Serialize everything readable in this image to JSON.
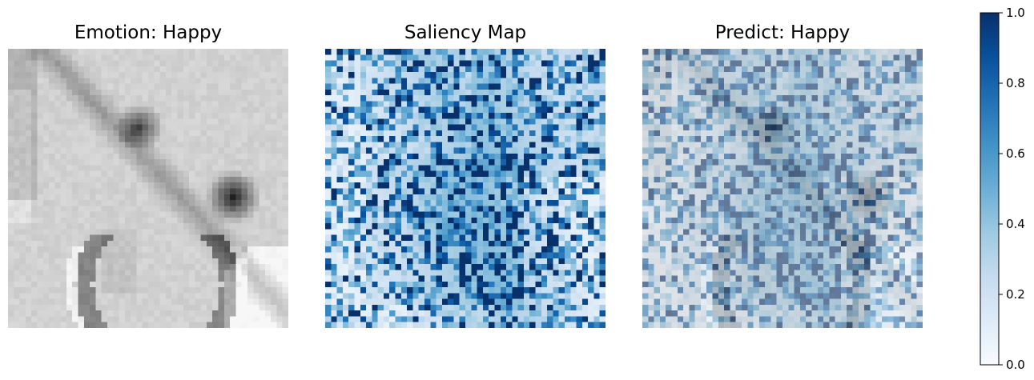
{
  "panels": [
    {
      "title": "Emotion: Happy",
      "kind": "grayscale-face"
    },
    {
      "title": "Saliency Map",
      "kind": "saliency"
    },
    {
      "title": "Predict: Happy",
      "kind": "overlay"
    }
  ],
  "chart_data": {
    "type": "heatmap",
    "grid_resolution": 48,
    "colormap": "Blues",
    "colorbar": {
      "range": [
        0,
        1
      ],
      "ticks": [
        "0.0",
        "0.2",
        "0.4",
        "0.6",
        "0.8",
        "1.0"
      ],
      "placement": "right"
    },
    "colors": {
      "blues_low": "#f7fbff",
      "blues_mid": "#6baed6",
      "blues_high": "#08306b"
    }
  }
}
